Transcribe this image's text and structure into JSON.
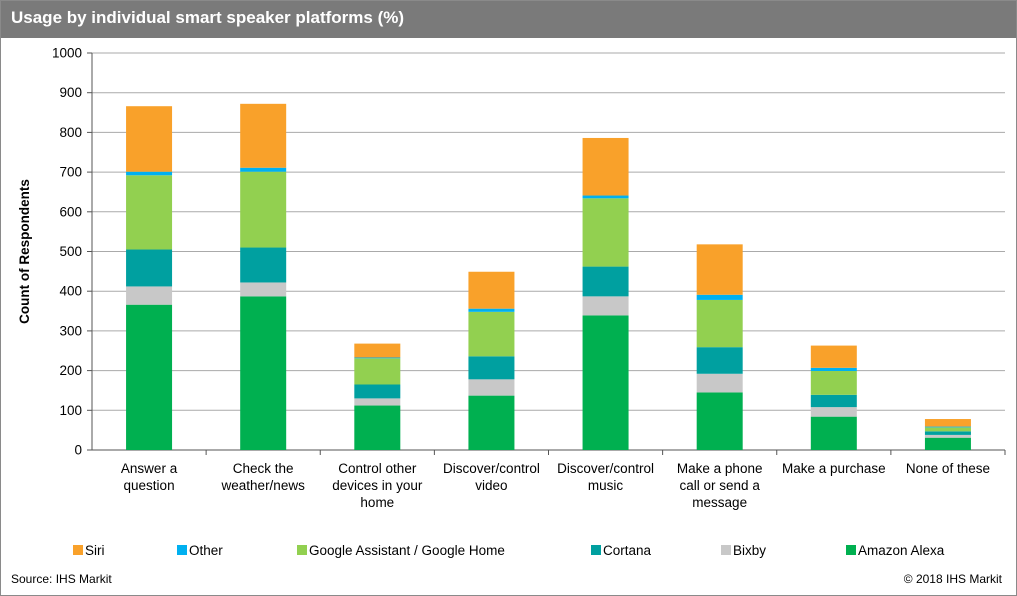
{
  "header": {
    "title": "Usage by individual smart speaker platforms (%)"
  },
  "footer": {
    "source": "Source: IHS Markit",
    "copyright": "© 2018 IHS Markit"
  },
  "chart_data": {
    "type": "bar",
    "stacked": true,
    "title": "Usage by individual smart speaker platforms (%)",
    "ylabel": "Count of Respondents",
    "xlabel": "",
    "ylim": [
      0,
      1000
    ],
    "yticks": [
      0,
      100,
      200,
      300,
      400,
      500,
      600,
      700,
      800,
      900,
      1000
    ],
    "grid": true,
    "legend_position": "bottom",
    "categories": [
      [
        "Answer a",
        "question"
      ],
      [
        "Check the",
        "weather/news"
      ],
      [
        "Control other",
        "devices in your",
        "home"
      ],
      [
        "Discover/control",
        "video"
      ],
      [
        "Discover/control",
        "music"
      ],
      [
        "Make a phone",
        "call or send a",
        "message"
      ],
      [
        "Make a purchase"
      ],
      [
        "None of these"
      ]
    ],
    "series": [
      {
        "name": "Amazon Alexa",
        "color": "#00b050",
        "values": [
          366,
          387,
          112,
          137,
          339,
          145,
          84,
          31
        ]
      },
      {
        "name": "Bixby",
        "color": "#c8c8c8",
        "values": [
          46,
          35,
          18,
          41,
          48,
          47,
          24,
          7
        ]
      },
      {
        "name": "Cortana",
        "color": "#00a0a0",
        "values": [
          93,
          88,
          35,
          58,
          75,
          67,
          31,
          9
        ]
      },
      {
        "name": "Google Assistant / Google Home",
        "color": "#92d050",
        "values": [
          187,
          191,
          66,
          112,
          172,
          119,
          60,
          10
        ]
      },
      {
        "name": "Other",
        "color": "#00b0f0",
        "values": [
          9,
          10,
          2,
          8,
          7,
          13,
          8,
          2
        ]
      },
      {
        "name": "Siri",
        "color": "#f9a12a",
        "values": [
          165,
          161,
          35,
          93,
          145,
          127,
          56,
          19
        ]
      }
    ],
    "legend_order": [
      "Siri",
      "Other",
      "Google Assistant / Google Home",
      "Cortana",
      "Bixby",
      "Amazon Alexa"
    ]
  }
}
